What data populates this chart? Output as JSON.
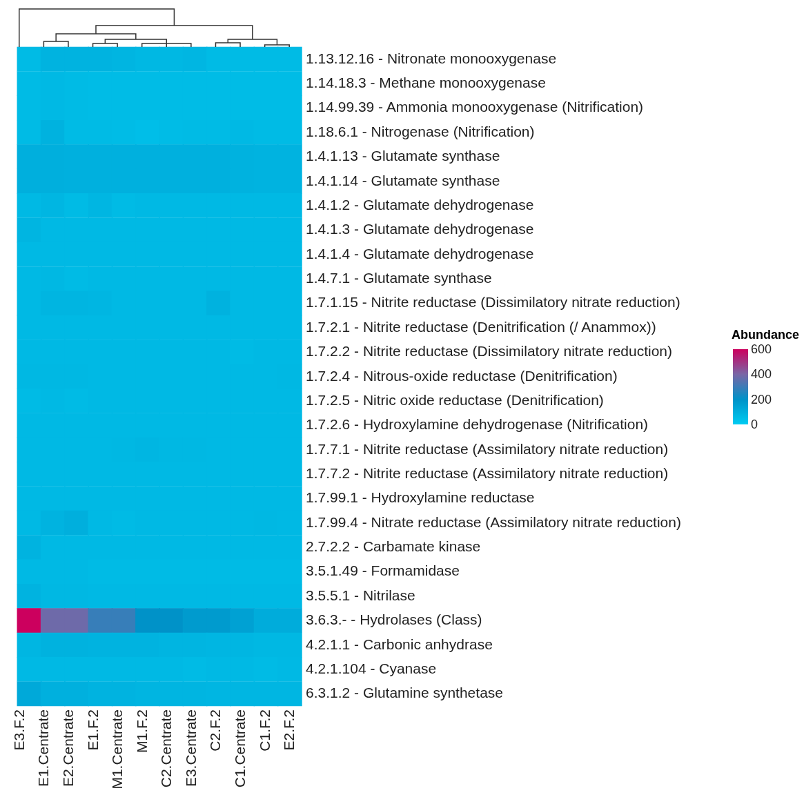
{
  "chart_data": {
    "type": "heatmap",
    "clabel": "Abundance",
    "clim": [
      0,
      600
    ],
    "cticks": [
      0,
      200,
      400,
      600
    ],
    "categories": [
      "E3.F.2",
      "E1.Centrate",
      "E2.Centrate",
      "E1.F.2",
      "M1.Centrate",
      "M1.F.2",
      "C2.Centrate",
      "E3.Centrate",
      "C2.F.2",
      "C1.Centrate",
      "C1.F.2",
      "E2.F.2"
    ],
    "y_categories": [
      "1.13.12.16 - Nitronate monooxygenase",
      "1.14.18.3 - Methane monooxygenase",
      "1.14.99.39 - Ammonia monooxygenase (Nitrification)",
      "1.18.6.1 - Nitrogenase (Nitrification)",
      "1.4.1.13 - Glutamate synthase",
      "1.4.1.14 - Glutamate synthase",
      "1.4.1.2 - Glutamate dehydrogenase",
      "1.4.1.3 - Glutamate dehydrogenase",
      "1.4.1.4 - Glutamate dehydrogenase",
      "1.4.7.1 - Glutamate synthase",
      "1.7.1.15 - Nitrite reductase (Dissimilatory nitrate reduction)",
      "1.7.2.1 - Nitrite reductase (Denitrification (/ Anammox))",
      "1.7.2.2 - Nitrite reductase (Dissimilatory nitrate reduction)",
      "1.7.2.4 - Nitrous-oxide reductase (Denitrification)",
      "1.7.2.5 - Nitric oxide reductase (Denitrification)",
      "1.7.2.6 - Hydroxylamine dehydrogenase (Nitrification)",
      "1.7.7.1 - Nitrite reductase (Assimilatory nitrate reduction)",
      "1.7.7.2 - Nitrite reductase (Assimilatory nitrate reduction)",
      "1.7.99.1 - Hydroxylamine reductase",
      "1.7.99.4 - Nitrate reductase (Assimilatory nitrate reduction)",
      "2.7.2.2 - Carbamate kinase",
      "3.5.1.49 - Formamidase",
      "3.5.5.1 - Nitrilase",
      "3.6.3.- - Hydrolases (Class)",
      "4.2.1.1 - Carbonic anhydrase",
      "4.2.1.104 - Cyanase",
      "6.3.1.2 - Glutamine synthetase"
    ],
    "cells": [
      [
        60,
        85,
        85,
        85,
        80,
        70,
        70,
        75,
        60,
        60,
        60,
        60
      ],
      [
        60,
        65,
        60,
        55,
        55,
        55,
        55,
        55,
        55,
        55,
        55,
        55
      ],
      [
        60,
        65,
        60,
        55,
        55,
        55,
        55,
        55,
        55,
        55,
        55,
        55
      ],
      [
        60,
        90,
        60,
        60,
        55,
        50,
        55,
        60,
        60,
        65,
        60,
        60
      ],
      [
        100,
        100,
        95,
        95,
        95,
        95,
        95,
        95,
        95,
        90,
        85,
        85
      ],
      [
        100,
        100,
        95,
        95,
        95,
        95,
        95,
        95,
        95,
        90,
        85,
        85
      ],
      [
        65,
        75,
        60,
        75,
        60,
        65,
        65,
        65,
        65,
        65,
        65,
        65
      ],
      [
        80,
        65,
        65,
        65,
        65,
        65,
        65,
        65,
        65,
        65,
        65,
        65
      ],
      [
        65,
        65,
        65,
        65,
        65,
        65,
        65,
        65,
        65,
        65,
        65,
        65
      ],
      [
        65,
        70,
        60,
        65,
        65,
        65,
        65,
        65,
        65,
        65,
        65,
        65
      ],
      [
        65,
        80,
        80,
        75,
        65,
        65,
        65,
        65,
        90,
        65,
        65,
        65
      ],
      [
        65,
        65,
        65,
        65,
        65,
        65,
        65,
        65,
        65,
        65,
        65,
        65
      ],
      [
        65,
        65,
        65,
        65,
        65,
        65,
        65,
        65,
        65,
        60,
        65,
        65
      ],
      [
        70,
        70,
        70,
        65,
        65,
        65,
        65,
        65,
        65,
        65,
        65,
        70
      ],
      [
        60,
        65,
        60,
        65,
        65,
        65,
        65,
        65,
        65,
        65,
        65,
        65
      ],
      [
        65,
        65,
        65,
        65,
        65,
        65,
        65,
        65,
        65,
        65,
        65,
        65
      ],
      [
        65,
        65,
        65,
        65,
        70,
        75,
        70,
        70,
        65,
        65,
        65,
        65
      ],
      [
        65,
        65,
        65,
        65,
        65,
        65,
        65,
        65,
        65,
        65,
        65,
        65
      ],
      [
        65,
        65,
        65,
        65,
        65,
        65,
        65,
        65,
        65,
        65,
        65,
        65
      ],
      [
        65,
        85,
        100,
        65,
        60,
        65,
        65,
        65,
        65,
        65,
        70,
        65
      ],
      [
        85,
        65,
        65,
        65,
        65,
        65,
        65,
        65,
        65,
        65,
        65,
        65
      ],
      [
        65,
        65,
        65,
        60,
        60,
        60,
        60,
        60,
        60,
        60,
        60,
        60
      ],
      [
        85,
        70,
        70,
        65,
        65,
        65,
        65,
        65,
        65,
        65,
        65,
        65
      ],
      [
        600,
        380,
        380,
        290,
        290,
        200,
        200,
        170,
        170,
        150,
        110,
        110
      ],
      [
        75,
        90,
        90,
        85,
        85,
        85,
        80,
        80,
        75,
        75,
        70,
        70
      ],
      [
        65,
        65,
        65,
        65,
        65,
        65,
        65,
        60,
        65,
        65,
        60,
        65
      ],
      [
        120,
        95,
        95,
        85,
        85,
        80,
        80,
        80,
        75,
        75,
        75,
        75
      ]
    ]
  }
}
